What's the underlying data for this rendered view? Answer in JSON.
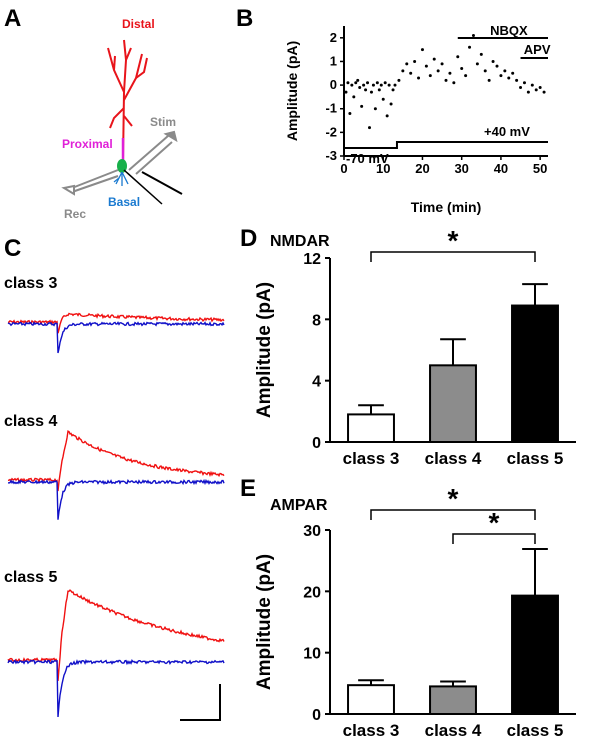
{
  "panels": {
    "a": {
      "letter": "A",
      "labels": {
        "distal": "Distal",
        "proximal": "Proximal",
        "basal": "Basal",
        "stim": "Stim",
        "rec": "Rec"
      },
      "colors": {
        "distal": "#e8141b",
        "proximal": "#e020d8",
        "basal": "#1a7ad0",
        "soma": "#17b04a",
        "electrode": "#8a8a8a"
      }
    },
    "b": {
      "letter": "B"
    },
    "c": {
      "letter": "C",
      "classes": [
        "class 3",
        "class 4",
        "class 5"
      ],
      "colors": {
        "trace1": "#f01010",
        "trace2": "#1010c8"
      }
    },
    "d": {
      "letter": "D"
    },
    "e": {
      "letter": "E"
    }
  },
  "chart_data": [
    {
      "type": "scatter",
      "panel": "B",
      "xlabel": "Time (min)",
      "ylabel": "Amplitude (pA)",
      "xlim": [
        0,
        52
      ],
      "ylim": [
        -3,
        2.5
      ],
      "xticks": [
        0,
        10,
        20,
        30,
        40,
        50
      ],
      "yticks": [
        -3,
        -2,
        -1,
        0,
        1,
        2
      ],
      "annotations": {
        "nbqx": {
          "label": "NBQX",
          "x_start": 29,
          "x_end": 52
        },
        "apv": {
          "label": "APV",
          "x_start": 45,
          "x_end": 52
        },
        "holding_low": {
          "label": "-70 mV",
          "x_start": 0,
          "x_end": 13.5
        },
        "holding_high": {
          "label": "+40 mV",
          "x_start": 13.5,
          "x_end": 52
        }
      },
      "series": [
        {
          "values_x": [
            0.5,
            1,
            1.5,
            2,
            2.5,
            3,
            3.5,
            4,
            4.5,
            5,
            5.5,
            6,
            6.5,
            7,
            7.5,
            8,
            8.5,
            9,
            9.5,
            10,
            10.5,
            11,
            11.5,
            12,
            12.5,
            13
          ],
          "values_y": [
            -0.3,
            0.1,
            -1.2,
            0.0,
            -0.5,
            0.1,
            0.2,
            -0.1,
            -0.9,
            0.0,
            -0.2,
            0.1,
            -1.8,
            -0.3,
            0.0,
            -1.0,
            0.1,
            -0.2,
            0.0,
            -0.6,
            0.1,
            -1.3,
            0.0,
            -0.8,
            -0.2,
            0.0
          ]
        },
        {
          "values_x": [
            14,
            15,
            16,
            17,
            18,
            19,
            20,
            21,
            22,
            23,
            24,
            25,
            26,
            27,
            28,
            29,
            30,
            31,
            32,
            33,
            34,
            35,
            36,
            37,
            38,
            39,
            40,
            41,
            42,
            43,
            44,
            45,
            46,
            47,
            48,
            49,
            50,
            51
          ],
          "values_y": [
            0.2,
            0.6,
            0.9,
            0.5,
            1.0,
            0.3,
            1.5,
            0.8,
            0.4,
            1.1,
            0.6,
            0.9,
            0.2,
            0.5,
            0.1,
            1.2,
            0.7,
            0.4,
            1.6,
            2.1,
            0.9,
            1.3,
            0.6,
            0.2,
            1.0,
            0.8,
            0.4,
            0.6,
            0.3,
            0.5,
            0.2,
            -0.1,
            0.1,
            -0.3,
            0.0,
            -0.2,
            -0.1,
            -0.3
          ]
        }
      ]
    },
    {
      "type": "bar",
      "panel": "D",
      "title": "NMDAR",
      "ylabel": "Amplitude (pA)",
      "categories": [
        "class 3",
        "class 4",
        "class 5"
      ],
      "values": [
        1.8,
        5.0,
        8.9
      ],
      "errors": [
        0.6,
        1.7,
        1.4
      ],
      "colors": [
        "#ffffff",
        "#8c8c8c",
        "#000000"
      ],
      "ylim": [
        0,
        12
      ],
      "yticks": [
        0,
        4,
        8,
        12
      ],
      "significance": [
        {
          "from": "class 3",
          "to": "class 5",
          "label": "*"
        }
      ]
    },
    {
      "type": "bar",
      "panel": "E",
      "title": "AMPAR",
      "ylabel": "Amplitude (pA)",
      "categories": [
        "class 3",
        "class 4",
        "class 5"
      ],
      "values": [
        4.7,
        4.5,
        19.3
      ],
      "errors": [
        0.8,
        0.8,
        7.6
      ],
      "colors": [
        "#ffffff",
        "#8c8c8c",
        "#000000"
      ],
      "ylim": [
        0,
        30
      ],
      "yticks": [
        0,
        10,
        20,
        30
      ],
      "significance": [
        {
          "from": "class 3",
          "to": "class 5",
          "label": "*"
        },
        {
          "from": "class 4",
          "to": "class 5",
          "label": "*"
        }
      ]
    }
  ]
}
